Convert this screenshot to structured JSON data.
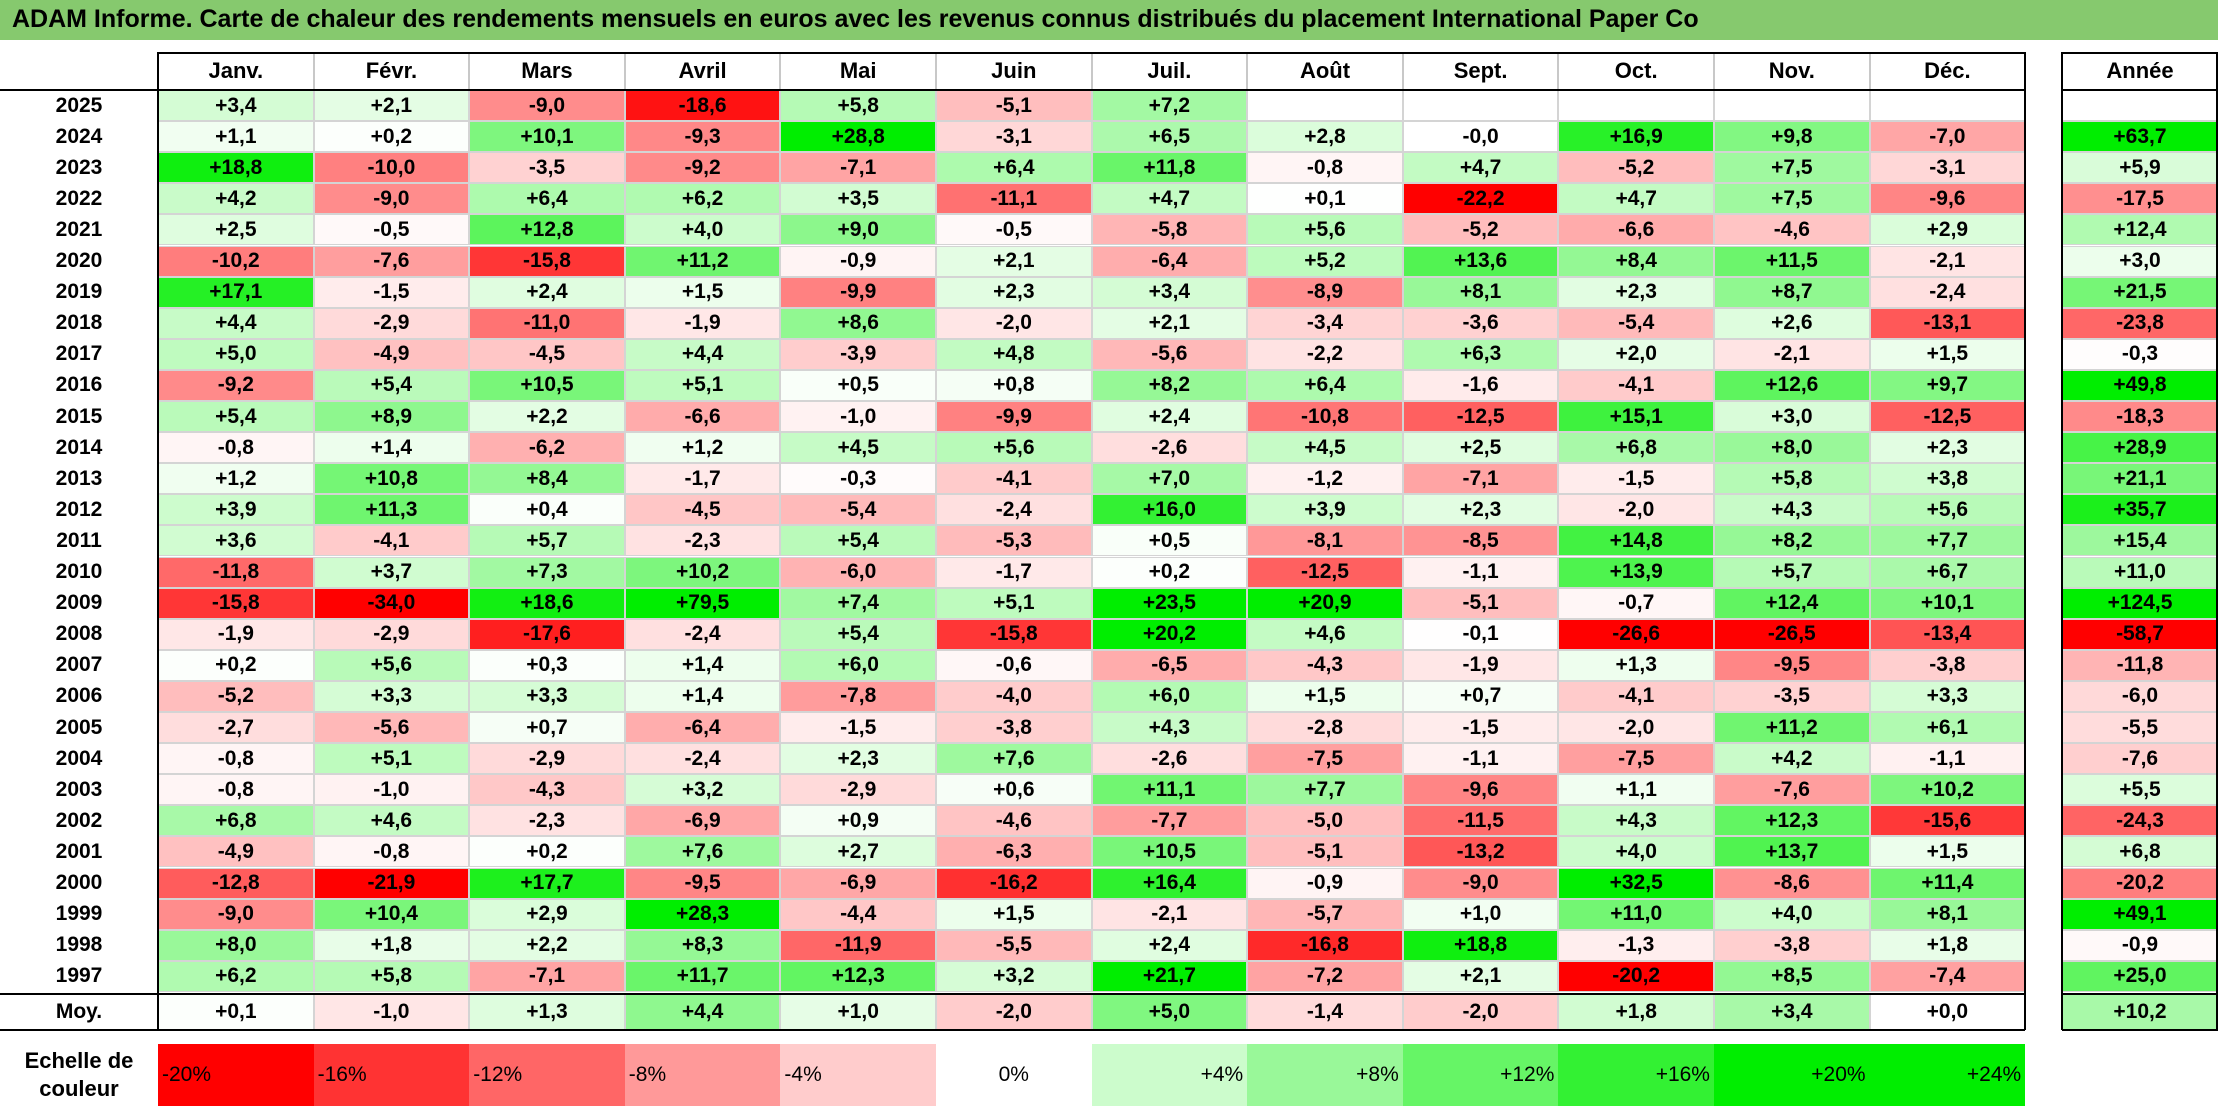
{
  "title": "ADAM Informe. Carte de chaleur des rendements mensuels en euros avec les revenus connus distribués du placement International Paper Co",
  "chart_data": {
    "type": "heatmap",
    "title": "ADAM Informe. Carte de chaleur des rendements mensuels en euros avec les revenus connus distribués du placement International Paper Co",
    "columns": [
      "Janv.",
      "Févr.",
      "Mars",
      "Avril",
      "Mai",
      "Juin",
      "Juil.",
      "Août",
      "Sept.",
      "Oct.",
      "Nov.",
      "Déc."
    ],
    "year_header": "Année",
    "rows": [
      {
        "year": "2025",
        "values": [
          "+3,4",
          "+2,1",
          "-9,0",
          "-18,6",
          "+5,8",
          "-5,1",
          "+7,2",
          "",
          "",
          "",
          "",
          ""
        ],
        "annual": ""
      },
      {
        "year": "2024",
        "values": [
          "+1,1",
          "+0,2",
          "+10,1",
          "-9,3",
          "+28,8",
          "-3,1",
          "+6,5",
          "+2,8",
          "-0,0",
          "+16,9",
          "+9,8",
          "-7,0"
        ],
        "annual": "+63,7"
      },
      {
        "year": "2023",
        "values": [
          "+18,8",
          "-10,0",
          "-3,5",
          "-9,2",
          "-7,1",
          "+6,4",
          "+11,8",
          "-0,8",
          "+4,7",
          "-5,2",
          "+7,5",
          "-3,1"
        ],
        "annual": "+5,9"
      },
      {
        "year": "2022",
        "values": [
          "+4,2",
          "-9,0",
          "+6,4",
          "+6,2",
          "+3,5",
          "-11,1",
          "+4,7",
          "+0,1",
          "-22,2",
          "+4,7",
          "+7,5",
          "-9,6"
        ],
        "annual": "-17,5"
      },
      {
        "year": "2021",
        "values": [
          "+2,5",
          "-0,5",
          "+12,8",
          "+4,0",
          "+9,0",
          "-0,5",
          "-5,8",
          "+5,6",
          "-5,2",
          "-6,6",
          "-4,6",
          "+2,9"
        ],
        "annual": "+12,4"
      },
      {
        "year": "2020",
        "values": [
          "-10,2",
          "-7,6",
          "-15,8",
          "+11,2",
          "-0,9",
          "+2,1",
          "-6,4",
          "+5,2",
          "+13,6",
          "+8,4",
          "+11,5",
          "-2,1"
        ],
        "annual": "+3,0"
      },
      {
        "year": "2019",
        "values": [
          "+17,1",
          "-1,5",
          "+2,4",
          "+1,5",
          "-9,9",
          "+2,3",
          "+3,4",
          "-8,9",
          "+8,1",
          "+2,3",
          "+8,7",
          "-2,4"
        ],
        "annual": "+21,5"
      },
      {
        "year": "2018",
        "values": [
          "+4,4",
          "-2,9",
          "-11,0",
          "-1,9",
          "+8,6",
          "-2,0",
          "+2,1",
          "-3,4",
          "-3,6",
          "-5,4",
          "+2,6",
          "-13,1"
        ],
        "annual": "-23,8"
      },
      {
        "year": "2017",
        "values": [
          "+5,0",
          "-4,9",
          "-4,5",
          "+4,4",
          "-3,9",
          "+4,8",
          "-5,6",
          "-2,2",
          "+6,3",
          "+2,0",
          "-2,1",
          "+1,5"
        ],
        "annual": "-0,3"
      },
      {
        "year": "2016",
        "values": [
          "-9,2",
          "+5,4",
          "+10,5",
          "+5,1",
          "+0,5",
          "+0,8",
          "+8,2",
          "+6,4",
          "-1,6",
          "-4,1",
          "+12,6",
          "+9,7"
        ],
        "annual": "+49,8"
      },
      {
        "year": "2015",
        "values": [
          "+5,4",
          "+8,9",
          "+2,2",
          "-6,6",
          "-1,0",
          "-9,9",
          "+2,4",
          "-10,8",
          "-12,5",
          "+15,1",
          "+3,0",
          "-12,5"
        ],
        "annual": "-18,3"
      },
      {
        "year": "2014",
        "values": [
          "-0,8",
          "+1,4",
          "-6,2",
          "+1,2",
          "+4,5",
          "+5,6",
          "-2,6",
          "+4,5",
          "+2,5",
          "+6,8",
          "+8,0",
          "+2,3"
        ],
        "annual": "+28,9"
      },
      {
        "year": "2013",
        "values": [
          "+1,2",
          "+10,8",
          "+8,4",
          "-1,7",
          "-0,3",
          "-4,1",
          "+7,0",
          "-1,2",
          "-7,1",
          "-1,5",
          "+5,8",
          "+3,8"
        ],
        "annual": "+21,1"
      },
      {
        "year": "2012",
        "values": [
          "+3,9",
          "+11,3",
          "+0,4",
          "-4,5",
          "-5,4",
          "-2,4",
          "+16,0",
          "+3,9",
          "+2,3",
          "-2,0",
          "+4,3",
          "+5,6"
        ],
        "annual": "+35,7"
      },
      {
        "year": "2011",
        "values": [
          "+3,6",
          "-4,1",
          "+5,7",
          "-2,3",
          "+5,4",
          "-5,3",
          "+0,5",
          "-8,1",
          "-8,5",
          "+14,8",
          "+8,2",
          "+7,7"
        ],
        "annual": "+15,4"
      },
      {
        "year": "2010",
        "values": [
          "-11,8",
          "+3,7",
          "+7,3",
          "+10,2",
          "-6,0",
          "-1,7",
          "+0,2",
          "-12,5",
          "-1,1",
          "+13,9",
          "+5,7",
          "+6,7"
        ],
        "annual": "+11,0"
      },
      {
        "year": "2009",
        "values": [
          "-15,8",
          "-34,0",
          "+18,6",
          "+79,5",
          "+7,4",
          "+5,1",
          "+23,5",
          "+20,9",
          "-5,1",
          "-0,7",
          "+12,4",
          "+10,1"
        ],
        "annual": "+124,5"
      },
      {
        "year": "2008",
        "values": [
          "-1,9",
          "-2,9",
          "-17,6",
          "-2,4",
          "+5,4",
          "-15,8",
          "+20,2",
          "+4,6",
          "-0,1",
          "-26,6",
          "-26,5",
          "-13,4"
        ],
        "annual": "-58,7"
      },
      {
        "year": "2007",
        "values": [
          "+0,2",
          "+5,6",
          "+0,3",
          "+1,4",
          "+6,0",
          "-0,6",
          "-6,5",
          "-4,3",
          "-1,9",
          "+1,3",
          "-9,5",
          "-3,8"
        ],
        "annual": "-11,8"
      },
      {
        "year": "2006",
        "values": [
          "-5,2",
          "+3,3",
          "+3,3",
          "+1,4",
          "-7,8",
          "-4,0",
          "+6,0",
          "+1,5",
          "+0,7",
          "-4,1",
          "-3,5",
          "+3,3"
        ],
        "annual": "-6,0"
      },
      {
        "year": "2005",
        "values": [
          "-2,7",
          "-5,6",
          "+0,7",
          "-6,4",
          "-1,5",
          "-3,8",
          "+4,3",
          "-2,8",
          "-1,5",
          "-2,0",
          "+11,2",
          "+6,1"
        ],
        "annual": "-5,5"
      },
      {
        "year": "2004",
        "values": [
          "-0,8",
          "+5,1",
          "-2,9",
          "-2,4",
          "+2,3",
          "+7,6",
          "-2,6",
          "-7,5",
          "-1,1",
          "-7,5",
          "+4,2",
          "-1,1"
        ],
        "annual": "-7,6"
      },
      {
        "year": "2003",
        "values": [
          "-0,8",
          "-1,0",
          "-4,3",
          "+3,2",
          "-2,9",
          "+0,6",
          "+11,1",
          "+7,7",
          "-9,6",
          "+1,1",
          "-7,6",
          "+10,2"
        ],
        "annual": "+5,5"
      },
      {
        "year": "2002",
        "values": [
          "+6,8",
          "+4,6",
          "-2,3",
          "-6,9",
          "+0,9",
          "-4,6",
          "-7,7",
          "-5,0",
          "-11,5",
          "+4,3",
          "+12,3",
          "-15,6"
        ],
        "annual": "-24,3"
      },
      {
        "year": "2001",
        "values": [
          "-4,9",
          "-0,8",
          "+0,2",
          "+7,6",
          "+2,7",
          "-6,3",
          "+10,5",
          "-5,1",
          "-13,2",
          "+4,0",
          "+13,7",
          "+1,5"
        ],
        "annual": "+6,8"
      },
      {
        "year": "2000",
        "values": [
          "-12,8",
          "-21,9",
          "+17,7",
          "-9,5",
          "-6,9",
          "-16,2",
          "+16,4",
          "-0,9",
          "-9,0",
          "+32,5",
          "-8,6",
          "+11,4"
        ],
        "annual": "-20,2"
      },
      {
        "year": "1999",
        "values": [
          "-9,0",
          "+10,4",
          "+2,9",
          "+28,3",
          "-4,4",
          "+1,5",
          "-2,1",
          "-5,7",
          "+1,0",
          "+11,0",
          "+4,0",
          "+8,1"
        ],
        "annual": "+49,1"
      },
      {
        "year": "1998",
        "values": [
          "+8,0",
          "+1,8",
          "+2,2",
          "+8,3",
          "-11,9",
          "-5,5",
          "+2,4",
          "-16,8",
          "+18,8",
          "-1,3",
          "-3,8",
          "+1,8"
        ],
        "annual": "-0,9"
      },
      {
        "year": "1997",
        "values": [
          "+6,2",
          "+5,8",
          "-7,1",
          "+11,7",
          "+12,3",
          "+3,2",
          "+21,7",
          "-7,2",
          "+2,1",
          "-20,2",
          "+8,5",
          "-7,4"
        ],
        "annual": "+25,0"
      }
    ],
    "average": {
      "label": "Moy.",
      "values": [
        "+0,1",
        "-1,0",
        "+1,3",
        "+4,4",
        "+1,0",
        "-2,0",
        "+5,0",
        "-1,4",
        "-2,0",
        "+1,8",
        "+3,4",
        "+0,0"
      ],
      "annual": "+10,2"
    },
    "color_scale": {
      "label_line1": "Echelle de",
      "label_line2": "couleur",
      "stops": [
        "-20%",
        "-16%",
        "-12%",
        "-8%",
        "-4%",
        "0%",
        "+4%",
        "+8%",
        "+12%",
        "+16%",
        "+20%",
        "+24%"
      ],
      "stop_values": [
        -20,
        -16,
        -12,
        -8,
        -4,
        0,
        4,
        8,
        12,
        16,
        20,
        24
      ]
    },
    "colors": {
      "negative": "#ff0000",
      "neutral": "#ffffff",
      "positive": "#00ee00",
      "title_bar": "#86c96e"
    }
  }
}
